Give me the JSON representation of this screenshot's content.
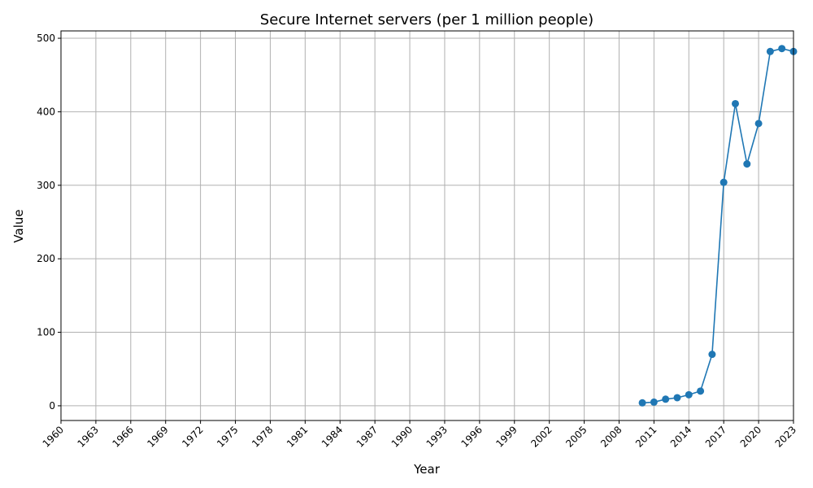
{
  "chart_data": {
    "type": "line",
    "title": "Secure Internet servers (per 1 million people)",
    "xlabel": "Year",
    "ylabel": "Value",
    "xlim": [
      1960,
      2023
    ],
    "ylim": [
      -20,
      510
    ],
    "x_ticks": [
      "1960",
      "1963",
      "1966",
      "1969",
      "1972",
      "1975",
      "1978",
      "1981",
      "1984",
      "1987",
      "1990",
      "1993",
      "1996",
      "1999",
      "2002",
      "2005",
      "2008",
      "2011",
      "2014",
      "2017",
      "2020",
      "2023"
    ],
    "y_ticks": [
      "0",
      "100",
      "200",
      "300",
      "400",
      "500"
    ],
    "grid": true,
    "series": [
      {
        "color": "#1f77b4",
        "marker": "circle",
        "x": [
          2010,
          2011,
          2012,
          2013,
          2014,
          2015,
          2016,
          2017,
          2018,
          2019,
          2020,
          2021,
          2022,
          2023
        ],
        "y": [
          4,
          5,
          9,
          11,
          15,
          20,
          70,
          304,
          411,
          329,
          384,
          482,
          486,
          482
        ]
      }
    ]
  }
}
